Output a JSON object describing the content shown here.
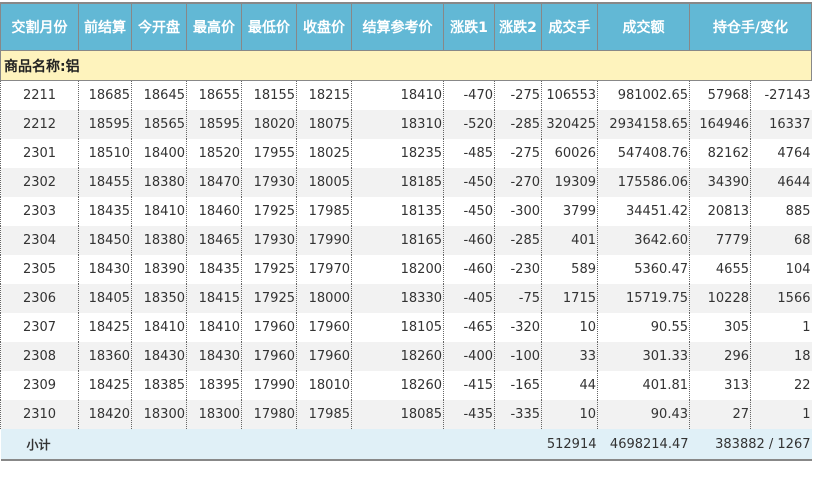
{
  "headers": [
    "交割月份",
    "前结算",
    "今开盘",
    "最高价",
    "最低价",
    "收盘价",
    "结算参考价",
    "涨跌1",
    "涨跌2",
    "成交手",
    "成交额",
    "持仓手/变化"
  ],
  "category": "商品名称:铝",
  "rows": [
    [
      "2211",
      "18685",
      "18645",
      "18655",
      "18155",
      "18215",
      "18410",
      "-470",
      "-275",
      "106553",
      "981002.65",
      "57968",
      "-27143"
    ],
    [
      "2212",
      "18595",
      "18565",
      "18595",
      "18020",
      "18075",
      "18310",
      "-520",
      "-285",
      "320425",
      "2934158.65",
      "164946",
      "16337"
    ],
    [
      "2301",
      "18510",
      "18400",
      "18520",
      "17955",
      "18025",
      "18235",
      "-485",
      "-275",
      "60026",
      "547408.76",
      "82162",
      "4764"
    ],
    [
      "2302",
      "18455",
      "18380",
      "18470",
      "17930",
      "18005",
      "18185",
      "-450",
      "-270",
      "19309",
      "175586.06",
      "34390",
      "4644"
    ],
    [
      "2303",
      "18435",
      "18410",
      "18460",
      "17925",
      "17985",
      "18135",
      "-450",
      "-300",
      "3799",
      "34451.42",
      "20813",
      "885"
    ],
    [
      "2304",
      "18450",
      "18380",
      "18465",
      "17930",
      "17990",
      "18165",
      "-460",
      "-285",
      "401",
      "3642.60",
      "7779",
      "68"
    ],
    [
      "2305",
      "18430",
      "18390",
      "18435",
      "17925",
      "17970",
      "18200",
      "-460",
      "-230",
      "589",
      "5360.47",
      "4655",
      "104"
    ],
    [
      "2306",
      "18405",
      "18350",
      "18415",
      "17925",
      "18000",
      "18330",
      "-405",
      "-75",
      "1715",
      "15719.75",
      "10228",
      "1566"
    ],
    [
      "2307",
      "18425",
      "18410",
      "18410",
      "17960",
      "17960",
      "18105",
      "-465",
      "-320",
      "10",
      "90.55",
      "305",
      "1"
    ],
    [
      "2308",
      "18360",
      "18430",
      "18430",
      "17960",
      "17960",
      "18260",
      "-400",
      "-100",
      "33",
      "301.33",
      "296",
      "18"
    ],
    [
      "2309",
      "18425",
      "18385",
      "18395",
      "17990",
      "18010",
      "18260",
      "-415",
      "-165",
      "44",
      "401.81",
      "313",
      "22"
    ],
    [
      "2310",
      "18420",
      "18300",
      "18300",
      "17980",
      "17985",
      "18085",
      "-435",
      "-335",
      "10",
      "90.43",
      "27",
      "1"
    ]
  ],
  "subtotal": {
    "label": "小计",
    "volume": "512914",
    "turnover": "4698214.47",
    "open_interest": "383882 / 1267"
  }
}
